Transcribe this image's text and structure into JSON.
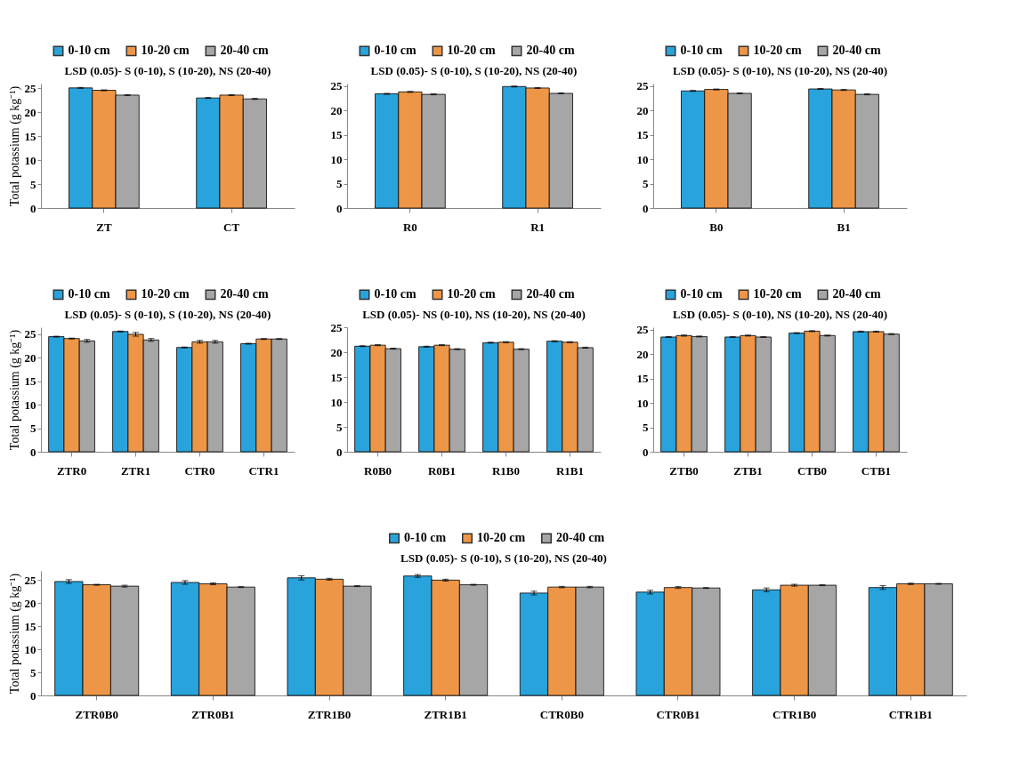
{
  "chart_data": [
    {
      "type": "bar",
      "ylabel": "Total potassium (g kg⁻¹)",
      "categories": [
        "ZT",
        "CT"
      ],
      "ylim": [
        0,
        26
      ],
      "yticks": [
        0,
        5,
        10,
        15,
        20,
        25
      ],
      "grid": false,
      "legend": "top",
      "annotations": [
        "LSD (0.05)- S (0-10), S (10-20), NS (20-40)"
      ],
      "series": [
        {
          "name": "0-10 cm",
          "color": "#29a3dc",
          "values": [
            25.1,
            23.0
          ],
          "errors": [
            0.1,
            0.1
          ]
        },
        {
          "name": "10-20 cm",
          "color": "#ee9647",
          "values": [
            24.6,
            23.6
          ],
          "errors": [
            0.1,
            0.1
          ]
        },
        {
          "name": "20-40 cm",
          "color": "#a6a6a6",
          "values": [
            23.6,
            22.8
          ],
          "errors": [
            0.1,
            0.1
          ]
        }
      ]
    },
    {
      "type": "bar",
      "categories": [
        "R0",
        "R1"
      ],
      "ylim": [
        0,
        25.5
      ],
      "yticks": [
        0,
        5,
        10,
        15,
        20,
        25
      ],
      "grid": false,
      "legend": "top",
      "annotations": [
        "LSD (0.05)- S (0-10), S (10-20), NS (20-40)"
      ],
      "series": [
        {
          "name": "0-10 cm",
          "color": "#29a3dc",
          "values": [
            23.4,
            24.9
          ],
          "errors": [
            0.1,
            0.1
          ]
        },
        {
          "name": "10-20 cm",
          "color": "#ee9647",
          "values": [
            23.8,
            24.6
          ],
          "errors": [
            0.1,
            0.1
          ]
        },
        {
          "name": "20-40 cm",
          "color": "#a6a6a6",
          "values": [
            23.3,
            23.5
          ],
          "errors": [
            0.1,
            0.1
          ]
        }
      ]
    },
    {
      "type": "bar",
      "categories": [
        "B0",
        "B1"
      ],
      "ylim": [
        0,
        25.5
      ],
      "yticks": [
        0,
        5,
        10,
        15,
        20,
        25
      ],
      "grid": false,
      "legend": "top",
      "annotations": [
        "LSD (0.05)- S (0-10), NS (10-20), NS (20-40)"
      ],
      "series": [
        {
          "name": "0-10 cm",
          "color": "#29a3dc",
          "values": [
            24.0,
            24.4
          ],
          "errors": [
            0.1,
            0.1
          ]
        },
        {
          "name": "10-20 cm",
          "color": "#ee9647",
          "values": [
            24.3,
            24.2
          ],
          "errors": [
            0.1,
            0.1
          ]
        },
        {
          "name": "20-40 cm",
          "color": "#a6a6a6",
          "values": [
            23.5,
            23.3
          ],
          "errors": [
            0.1,
            0.1
          ]
        }
      ]
    },
    {
      "type": "bar",
      "ylabel": "Total potassium (g kg⁻¹)",
      "categories": [
        "ZTR0",
        "ZTR1",
        "CTR0",
        "CTR1"
      ],
      "ylim": [
        0,
        26.5
      ],
      "yticks": [
        0,
        5,
        10,
        15,
        20,
        25
      ],
      "grid": false,
      "legend": "top",
      "annotations": [
        "LSD (0.05)- S (0-10), S (10-20), NS (20-40)"
      ],
      "series": [
        {
          "name": "0-10 cm",
          "color": "#29a3dc",
          "values": [
            24.5,
            25.6,
            22.2,
            23.0
          ],
          "errors": [
            0.1,
            0.1,
            0.1,
            0.1
          ]
        },
        {
          "name": "10-20 cm",
          "color": "#ee9647",
          "values": [
            24.1,
            25.0,
            23.4,
            24.0
          ],
          "errors": [
            0.1,
            0.4,
            0.3,
            0.1
          ]
        },
        {
          "name": "20-40 cm",
          "color": "#a6a6a6",
          "values": [
            23.6,
            23.8,
            23.4,
            24.0
          ],
          "errors": [
            0.3,
            0.3,
            0.3,
            0.1
          ]
        }
      ]
    },
    {
      "type": "bar",
      "categories": [
        "R0B0",
        "R0B1",
        "R1B0",
        "R1B1"
      ],
      "ylim": [
        0,
        25
      ],
      "yticks": [
        0,
        5,
        10,
        15,
        20,
        25
      ],
      "grid": false,
      "legend": "top",
      "annotations": [
        "LSD (0.05)- NS (0-10), NS (10-20), NS (20-40)"
      ],
      "series": [
        {
          "name": "0-10 cm",
          "color": "#29a3dc",
          "values": [
            21.2,
            21.1,
            21.9,
            22.2
          ],
          "errors": [
            0.1,
            0.1,
            0.1,
            0.1
          ]
        },
        {
          "name": "10-20 cm",
          "color": "#ee9647",
          "values": [
            21.4,
            21.4,
            22.0,
            22.0
          ],
          "errors": [
            0.1,
            0.1,
            0.1,
            0.1
          ]
        },
        {
          "name": "20-40 cm",
          "color": "#a6a6a6",
          "values": [
            20.7,
            20.6,
            20.6,
            20.9
          ],
          "errors": [
            0.1,
            0.1,
            0.1,
            0.1
          ]
        }
      ]
    },
    {
      "type": "bar",
      "categories": [
        "ZTB0",
        "ZTB1",
        "CTB0",
        "CTB1"
      ],
      "ylim": [
        0,
        25.5
      ],
      "yticks": [
        0,
        5,
        10,
        15,
        20,
        25
      ],
      "grid": false,
      "legend": "top",
      "annotations": [
        "LSD (0.05)- S (0-10), NS (10-20), NS (20-40)"
      ],
      "series": [
        {
          "name": "0-10 cm",
          "color": "#29a3dc",
          "values": [
            23.5,
            23.5,
            24.3,
            24.6
          ],
          "errors": [
            0.1,
            0.1,
            0.1,
            0.1
          ]
        },
        {
          "name": "10-20 cm",
          "color": "#ee9647",
          "values": [
            23.8,
            23.8,
            24.7,
            24.6
          ],
          "errors": [
            0.1,
            0.1,
            0.1,
            0.1
          ]
        },
        {
          "name": "20-40 cm",
          "color": "#a6a6a6",
          "values": [
            23.6,
            23.5,
            23.8,
            24.1
          ],
          "errors": [
            0.1,
            0.1,
            0.1,
            0.1
          ]
        }
      ]
    },
    {
      "type": "bar",
      "ylabel": "Total potassium (g kg⁻¹)",
      "categories": [
        "ZTR0B0",
        "ZTR0B1",
        "ZTR1B0",
        "ZTR1B1",
        "CTR0B0",
        "CTR0B1",
        "CTR1B0",
        "CTR1B1"
      ],
      "ylim": [
        0,
        27
      ],
      "yticks": [
        0,
        5,
        10,
        15,
        20,
        25
      ],
      "grid": false,
      "legend": "top",
      "annotations": [
        "LSD (0.05)- S (0-10), S (10-20), NS (20-40)"
      ],
      "series": [
        {
          "name": "0-10 cm",
          "color": "#29a3dc",
          "values": [
            24.7,
            24.5,
            25.5,
            25.9,
            22.2,
            22.4,
            22.9,
            23.4
          ],
          "errors": [
            0.4,
            0.4,
            0.45,
            0.3,
            0.4,
            0.4,
            0.4,
            0.4
          ]
        },
        {
          "name": "10-20 cm",
          "color": "#ee9647",
          "values": [
            24.0,
            24.2,
            25.2,
            25.0,
            23.5,
            23.4,
            23.9,
            24.2
          ],
          "errors": [
            0.1,
            0.2,
            0.2,
            0.2,
            0.15,
            0.2,
            0.2,
            0.15
          ]
        },
        {
          "name": "20-40 cm",
          "color": "#a6a6a6",
          "values": [
            23.7,
            23.5,
            23.7,
            24.0,
            23.5,
            23.3,
            23.9,
            24.2
          ],
          "errors": [
            0.2,
            0.1,
            0.1,
            0.1,
            0.15,
            0.1,
            0.1,
            0.1
          ]
        }
      ]
    }
  ]
}
